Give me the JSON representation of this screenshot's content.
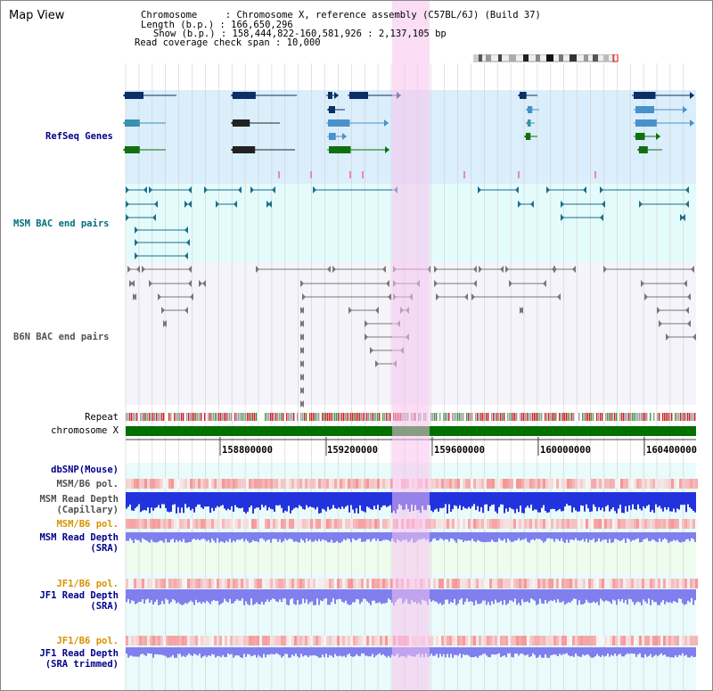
{
  "header": {
    "title": "Map View",
    "chromosome_line": "Chromosome     : Chromosome X, reference assembly (C57BL/6J) (Build 37)",
    "length_line": "Length (b.p.) : 166,650,296",
    "show_line": "Show (b.p.) : 158,444,822-160,581,926 : 2,137,105 bp",
    "coverage_line": "Read coverage check span : 10,000"
  },
  "tracks": {
    "refseq": "RefSeq Genes",
    "msm_bac": "MSM BAC end pairs",
    "b6n_bac": "B6N BAC end pairs",
    "repeat": "Repeat",
    "chromosome": "chromosome X",
    "dbsnp": "dbSNP(Mouse)",
    "msm_b6_pol_1": "MSM/B6 pol.",
    "msm_depth_cap_1": "MSM Read Depth",
    "msm_depth_cap_2": "(Capillary)",
    "msm_b6_pol_2": "MSM/B6 pol.",
    "msm_depth_sra_1": "MSM Read Depth",
    "msm_depth_sra_2": "(SRA)",
    "jf1_b6_pol_1": "JF1/B6 pol.",
    "jf1_depth_sra_1": "JF1 Read Depth",
    "jf1_depth_sra_2": "(SRA)",
    "jf1_b6_pol_2": "JF1/B6 pol.",
    "jf1_depth_trim_1": "JF1 Read Depth",
    "jf1_depth_trim_2": "(SRA trimmed)"
  },
  "axis": {
    "ticks": [
      "158800000",
      "159200000",
      "159600000",
      "160000000",
      "160400000"
    ]
  },
  "colors": {
    "refseq_bg": "#dbeefb",
    "msm_bac_bg": "#e4fbfb",
    "b6n_bac_bg": "#f4f4fa",
    "highlight": "#f7c3ee",
    "chromosome_bar": "#007000",
    "label_blue": "#00008b",
    "label_teal": "#006f7f",
    "label_gray": "#505050",
    "label_orange": "#d89200",
    "depth_blue": "#2233dd",
    "depth_light": "#7f7fee"
  }
}
